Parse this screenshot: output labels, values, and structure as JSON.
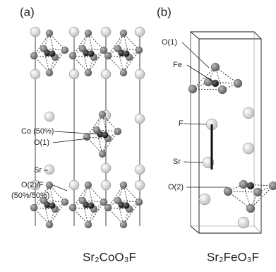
{
  "panel_a": {
    "label": "(a)",
    "annotations": [
      "Co (50%)",
      "O(1)",
      "Sr",
      "O(2)/F",
      "(50%/50%)"
    ],
    "formula": "Sr₂CoO₃F"
  },
  "panel_b": {
    "label": "(b)",
    "annotations": [
      "O(1)",
      "Fe",
      "F",
      "Sr",
      "O(2)"
    ],
    "formula": "Sr₂FeO₃F"
  }
}
